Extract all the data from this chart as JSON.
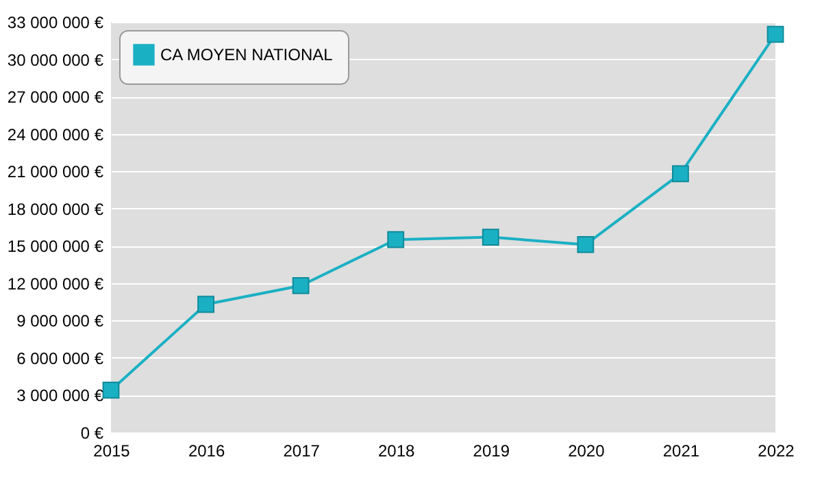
{
  "chart_data": {
    "type": "line",
    "x": [
      2015,
      2016,
      2017,
      2018,
      2019,
      2020,
      2021,
      2022
    ],
    "series": [
      {
        "name": "CA MOYEN NATIONAL",
        "color": "#1ab0c4",
        "values": [
          3400000,
          10300000,
          11800000,
          15500000,
          15700000,
          15100000,
          20800000,
          32000000
        ]
      }
    ],
    "xlim": [
      2015,
      2022
    ],
    "xticks": [
      2015,
      2016,
      2017,
      2018,
      2019,
      2020,
      2021,
      2022
    ],
    "ylim": [
      0,
      33000000
    ],
    "yticks": [
      {
        "value": 0,
        "label": "0 €"
      },
      {
        "value": 3000000,
        "label": "3 000 000 €"
      },
      {
        "value": 6000000,
        "label": "6 000 000 €"
      },
      {
        "value": 9000000,
        "label": "9 000 000 €"
      },
      {
        "value": 12000000,
        "label": "12 000 000 €"
      },
      {
        "value": 15000000,
        "label": "15 000 000 €"
      },
      {
        "value": 18000000,
        "label": "18 000 000 €"
      },
      {
        "value": 21000000,
        "label": "21 000 000 €"
      },
      {
        "value": 24000000,
        "label": "24 000 000 €"
      },
      {
        "value": 27000000,
        "label": "27 000 000 €"
      },
      {
        "value": 30000000,
        "label": "30 000 000 €"
      },
      {
        "value": 33000000,
        "label": "33 000 000 €"
      }
    ],
    "grid": "y",
    "legend": "top left",
    "marker": "square",
    "line_style": "solid"
  }
}
